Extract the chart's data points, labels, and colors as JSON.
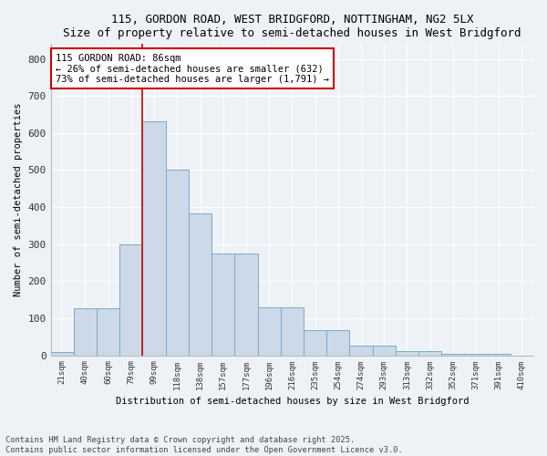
{
  "title1": "115, GORDON ROAD, WEST BRIDGFORD, NOTTINGHAM, NG2 5LX",
  "title2": "Size of property relative to semi-detached houses in West Bridgford",
  "xlabel": "Distribution of semi-detached houses by size in West Bridgford",
  "ylabel": "Number of semi-detached properties",
  "bins": [
    "21sqm",
    "40sqm",
    "60sqm",
    "79sqm",
    "99sqm",
    "118sqm",
    "138sqm",
    "157sqm",
    "177sqm",
    "196sqm",
    "216sqm",
    "235sqm",
    "254sqm",
    "274sqm",
    "293sqm",
    "313sqm",
    "332sqm",
    "352sqm",
    "371sqm",
    "391sqm",
    "410sqm"
  ],
  "values": [
    8,
    128,
    128,
    300,
    632,
    502,
    382,
    275,
    275,
    130,
    130,
    68,
    68,
    25,
    25,
    10,
    10,
    5,
    5,
    3,
    0
  ],
  "bar_color": "#ccd9e8",
  "bar_edge_color": "#7aaac8",
  "vline_color": "#cc0000",
  "annotation_text": "115 GORDON ROAD: 86sqm\n← 26% of semi-detached houses are smaller (632)\n73% of semi-detached houses are larger (1,791) →",
  "annotation_box_color": "white",
  "annotation_box_edge_color": "#cc0000",
  "ylim": [
    0,
    840
  ],
  "yticks": [
    0,
    100,
    200,
    300,
    400,
    500,
    600,
    700,
    800
  ],
  "footer": "Contains HM Land Registry data © Crown copyright and database right 2025.\nContains public sector information licensed under the Open Government Licence v3.0.",
  "bg_color": "#eef2f7",
  "grid_color": "#ffffff"
}
